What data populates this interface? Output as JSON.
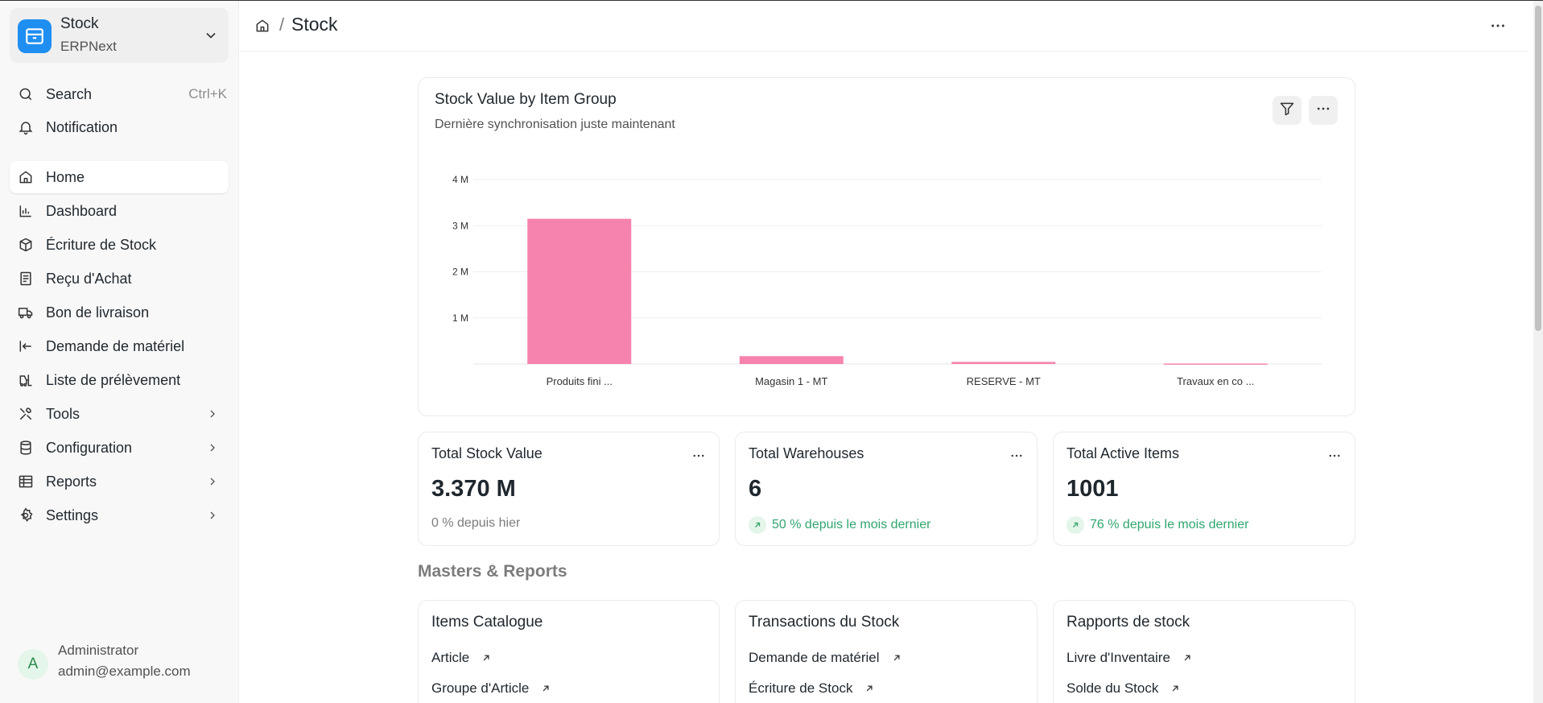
{
  "workspace": {
    "title": "Stock",
    "subtitle": "ERPNext"
  },
  "sidebar": {
    "search": {
      "label": "Search",
      "shortcut": "Ctrl+K"
    },
    "notification": "Notification",
    "items": [
      {
        "label": "Home",
        "icon": "home-icon"
      },
      {
        "label": "Dashboard",
        "icon": "bar-chart-icon"
      },
      {
        "label": "Écriture de Stock",
        "icon": "box-icon"
      },
      {
        "label": "Reçu d'Achat",
        "icon": "receipt-icon"
      },
      {
        "label": "Bon de livraison",
        "icon": "truck-icon"
      },
      {
        "label": "Demande de matériel",
        "icon": "arrow-left-bar-icon"
      },
      {
        "label": "Liste de prélèvement",
        "icon": "forklift-icon"
      },
      {
        "label": "Tools",
        "icon": "tools-icon"
      },
      {
        "label": "Configuration",
        "icon": "database-icon"
      },
      {
        "label": "Reports",
        "icon": "table-icon"
      },
      {
        "label": "Settings",
        "icon": "gear-icon"
      }
    ]
  },
  "user": {
    "initial": "A",
    "name": "Administrator",
    "email": "admin@example.com"
  },
  "breadcrumb": {
    "separator": "/",
    "title": "Stock"
  },
  "chart_card": {
    "title": "Stock Value by Item Group",
    "subtitle": "Dernière synchronisation juste maintenant"
  },
  "chart_data": {
    "type": "bar",
    "title": "Stock Value by Item Group",
    "categories": [
      "Produits fini ...",
      "Magasin 1 - MT",
      "RESERVE - MT",
      "Travaux en co ..."
    ],
    "values": [
      3150000,
      170000,
      45000,
      10000
    ],
    "ylim": [
      0,
      4000000
    ],
    "yticks": [
      1000000,
      2000000,
      3000000,
      4000000
    ],
    "ytick_labels": [
      "1 M",
      "2 M",
      "3 M",
      "4 M"
    ],
    "grid": true,
    "color": "#f683ae"
  },
  "number_cards": [
    {
      "title": "Total Stock Value",
      "value": "3.370 M",
      "stat": "0 % depuis hier",
      "trend": "none"
    },
    {
      "title": "Total Warehouses",
      "value": "6",
      "stat": "50 % depuis le mois dernier",
      "trend": "up"
    },
    {
      "title": "Total Active Items",
      "value": "1001",
      "stat": "76 % depuis le mois dernier",
      "trend": "up"
    }
  ],
  "section_title": "Masters & Reports",
  "link_cards": [
    {
      "title": "Items Catalogue",
      "links": [
        "Article",
        "Groupe d'Article"
      ]
    },
    {
      "title": "Transactions du Stock",
      "links": [
        "Demande de matériel",
        "Écriture de Stock"
      ]
    },
    {
      "title": "Rapports de stock",
      "links": [
        "Livre d'Inventaire",
        "Solde du Stock"
      ]
    }
  ],
  "colors": {
    "accent": "#1f8ef1",
    "bar": "#f683ae",
    "positive": "#30a66d"
  }
}
